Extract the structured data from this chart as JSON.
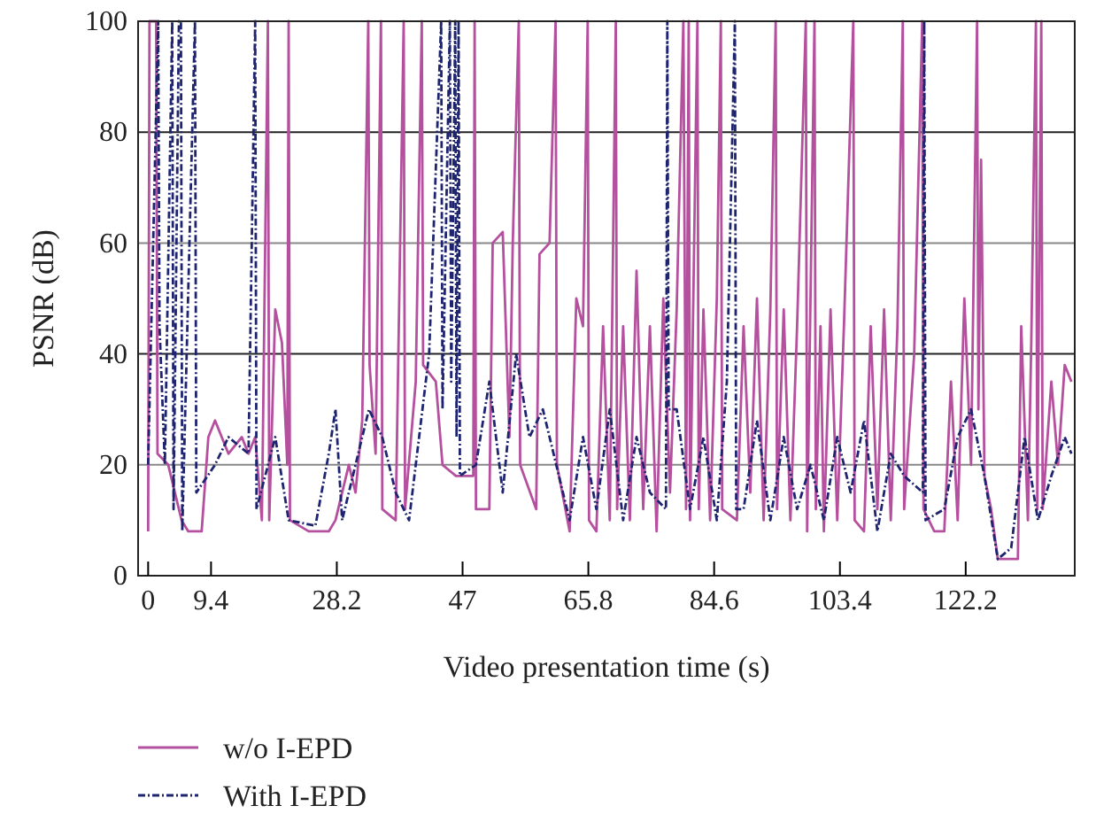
{
  "chart_data": {
    "type": "line",
    "xlabel": "Video presentation time (s)",
    "ylabel": "PSNR (dB)",
    "xlim": [
      -1.5,
      138.5
    ],
    "ylim": [
      0,
      100
    ],
    "xticks": [
      0,
      9.4,
      28.2,
      47,
      65.8,
      84.6,
      103.4,
      122.2
    ],
    "yticks": [
      0,
      20,
      40,
      60,
      80,
      100
    ],
    "grid": "y",
    "legend": "bottom",
    "series": [
      {
        "name": "w/o I-EPD",
        "color": "#b5509f",
        "line_style": "solid",
        "x": [
          0,
          0.2,
          1.2,
          1.4,
          3,
          5,
          6,
          8,
          9,
          10,
          12,
          14,
          15,
          16,
          17,
          17.9,
          18.1,
          19,
          20,
          20.8,
          21,
          21.2,
          24,
          27,
          28,
          30,
          31,
          32,
          32.9,
          33.1,
          34,
          34.8,
          35,
          37,
          38.2,
          38.4,
          40,
          40.9,
          41.1,
          43,
          44,
          46,
          48.6,
          48.8,
          49,
          51,
          51.5,
          53,
          54,
          54.5,
          55.4,
          55.6,
          58,
          58.5,
          60,
          60.9,
          61.1,
          63,
          64,
          65,
          65.7,
          65.9,
          67,
          68,
          69,
          69.9,
          70.1,
          71,
          72,
          73,
          74,
          75,
          76,
          77,
          78,
          79,
          80,
          80.4,
          80.8,
          81,
          82.1,
          82.3,
          83,
          84,
          85,
          85.6,
          85.8,
          88,
          89,
          90,
          91,
          92,
          93,
          93.8,
          94,
          95,
          96,
          97,
          98.3,
          98.5,
          99.6,
          99.8,
          100.5,
          101,
          102,
          103,
          104,
          105.4,
          105.6,
          107,
          108,
          109,
          110,
          111,
          112,
          112.8,
          113,
          114.5,
          115.7,
          115.9,
          117.5,
          119,
          120,
          121,
          122,
          123,
          123.9,
          124.1,
          124.5,
          125,
          126,
          127,
          130,
          130.5,
          131.5,
          132,
          132.7,
          132.9,
          133.5,
          133.7,
          135,
          136,
          137,
          138
        ],
        "values": [
          8,
          100,
          100,
          22,
          20,
          10,
          8,
          8,
          25,
          28,
          22,
          25,
          22,
          25,
          10,
          100,
          10,
          48,
          42,
          20,
          100,
          10,
          8,
          8,
          10,
          20,
          15,
          28,
          100,
          38,
          22,
          100,
          12,
          10,
          100,
          12,
          35,
          100,
          38,
          35,
          20,
          18,
          18,
          100,
          12,
          12,
          60,
          62,
          25,
          60,
          100,
          20,
          12,
          58,
          60,
          100,
          20,
          8,
          50,
          45,
          100,
          10,
          8,
          45,
          10,
          100,
          12,
          45,
          10,
          55,
          12,
          45,
          8,
          50,
          15,
          48,
          100,
          12,
          100,
          10,
          100,
          12,
          48,
          10,
          50,
          100,
          12,
          10,
          45,
          15,
          50,
          10,
          48,
          100,
          12,
          48,
          10,
          45,
          100,
          8,
          100,
          12,
          45,
          8,
          48,
          10,
          45,
          100,
          10,
          8,
          45,
          12,
          48,
          10,
          45,
          100,
          12,
          40,
          100,
          12,
          8,
          8,
          35,
          10,
          50,
          20,
          100,
          30,
          75,
          18,
          12,
          3,
          3,
          45,
          10,
          42,
          100,
          12,
          100,
          12,
          35,
          20,
          38,
          35
        ]
      },
      {
        "name": "With I-EPD",
        "color": "#1e2470",
        "line_style": "dashed",
        "x": [
          0,
          1.5,
          1.7,
          2.5,
          3.6,
          3.8,
          4.6,
          4.9,
          5.1,
          7,
          7.2,
          10,
          12,
          15,
          16,
          16.2,
          19,
          21,
          25,
          27,
          28,
          29,
          31,
          33,
          35,
          37,
          39,
          41,
          42,
          43.8,
          44,
          45.1,
          45.3,
          45.9,
          46.1,
          46.4,
          46.6,
          49,
          51,
          53,
          55,
          57,
          59,
          61,
          63,
          65,
          67,
          69,
          71,
          73,
          75,
          77.4,
          77.6,
          77.8,
          79,
          81,
          83,
          85,
          86.5,
          87.7,
          87.9,
          89,
          91,
          93,
          95,
          97,
          99,
          101,
          103,
          105,
          107,
          109,
          111,
          113,
          115.8,
          116,
          116.2,
          119,
          121,
          123,
          125,
          127,
          129,
          131,
          133,
          135,
          137,
          138
        ],
        "values": [
          20,
          100,
          45,
          20,
          100,
          12,
          100,
          100,
          8,
          100,
          15,
          20,
          25,
          22,
          100,
          12,
          25,
          10,
          9,
          22,
          30,
          10,
          20,
          30,
          25,
          15,
          10,
          30,
          40,
          100,
          30,
          100,
          35,
          100,
          25,
          100,
          18,
          20,
          35,
          15,
          40,
          25,
          30,
          20,
          10,
          25,
          12,
          30,
          10,
          25,
          15,
          12,
          100,
          30,
          30,
          12,
          25,
          10,
          35,
          100,
          12,
          12,
          28,
          10,
          25,
          12,
          20,
          10,
          25,
          15,
          28,
          8,
          22,
          18,
          15,
          100,
          10,
          12,
          25,
          30,
          18,
          3,
          5,
          25,
          10,
          18,
          25,
          22
        ]
      }
    ]
  }
}
